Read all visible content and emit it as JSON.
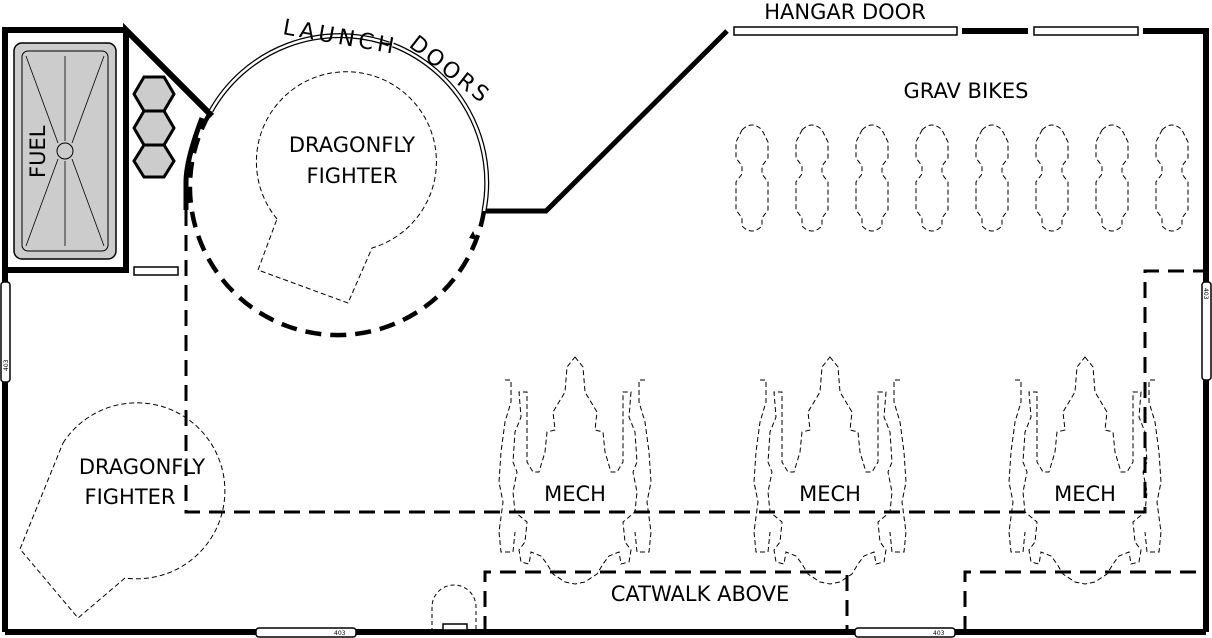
{
  "labels": {
    "hangar_door": "HANGAR DOOR",
    "launch": "LAUNCH",
    "doors": "DOORS",
    "fuel": "FUEL",
    "dragonfly_1": "DRAGONFLY",
    "fighter_1": "FIGHTER",
    "dragonfly_2": "DRAGONFLY",
    "fighter_2": "FIGHTER",
    "grav_bikes": "GRAV BIKES",
    "mech_1": "MECH",
    "mech_2": "MECH",
    "mech_3": "MECH",
    "catwalk": "CATWALK ABOVE"
  },
  "window_tags": [
    "403",
    "403",
    "403",
    "403"
  ],
  "counts": {
    "grav_bikes": 8,
    "mechs": 3,
    "fuel_cells": 3
  },
  "colors": {
    "line": "#000000",
    "fuel_fill": "#cccccc",
    "background": "#ffffff"
  }
}
